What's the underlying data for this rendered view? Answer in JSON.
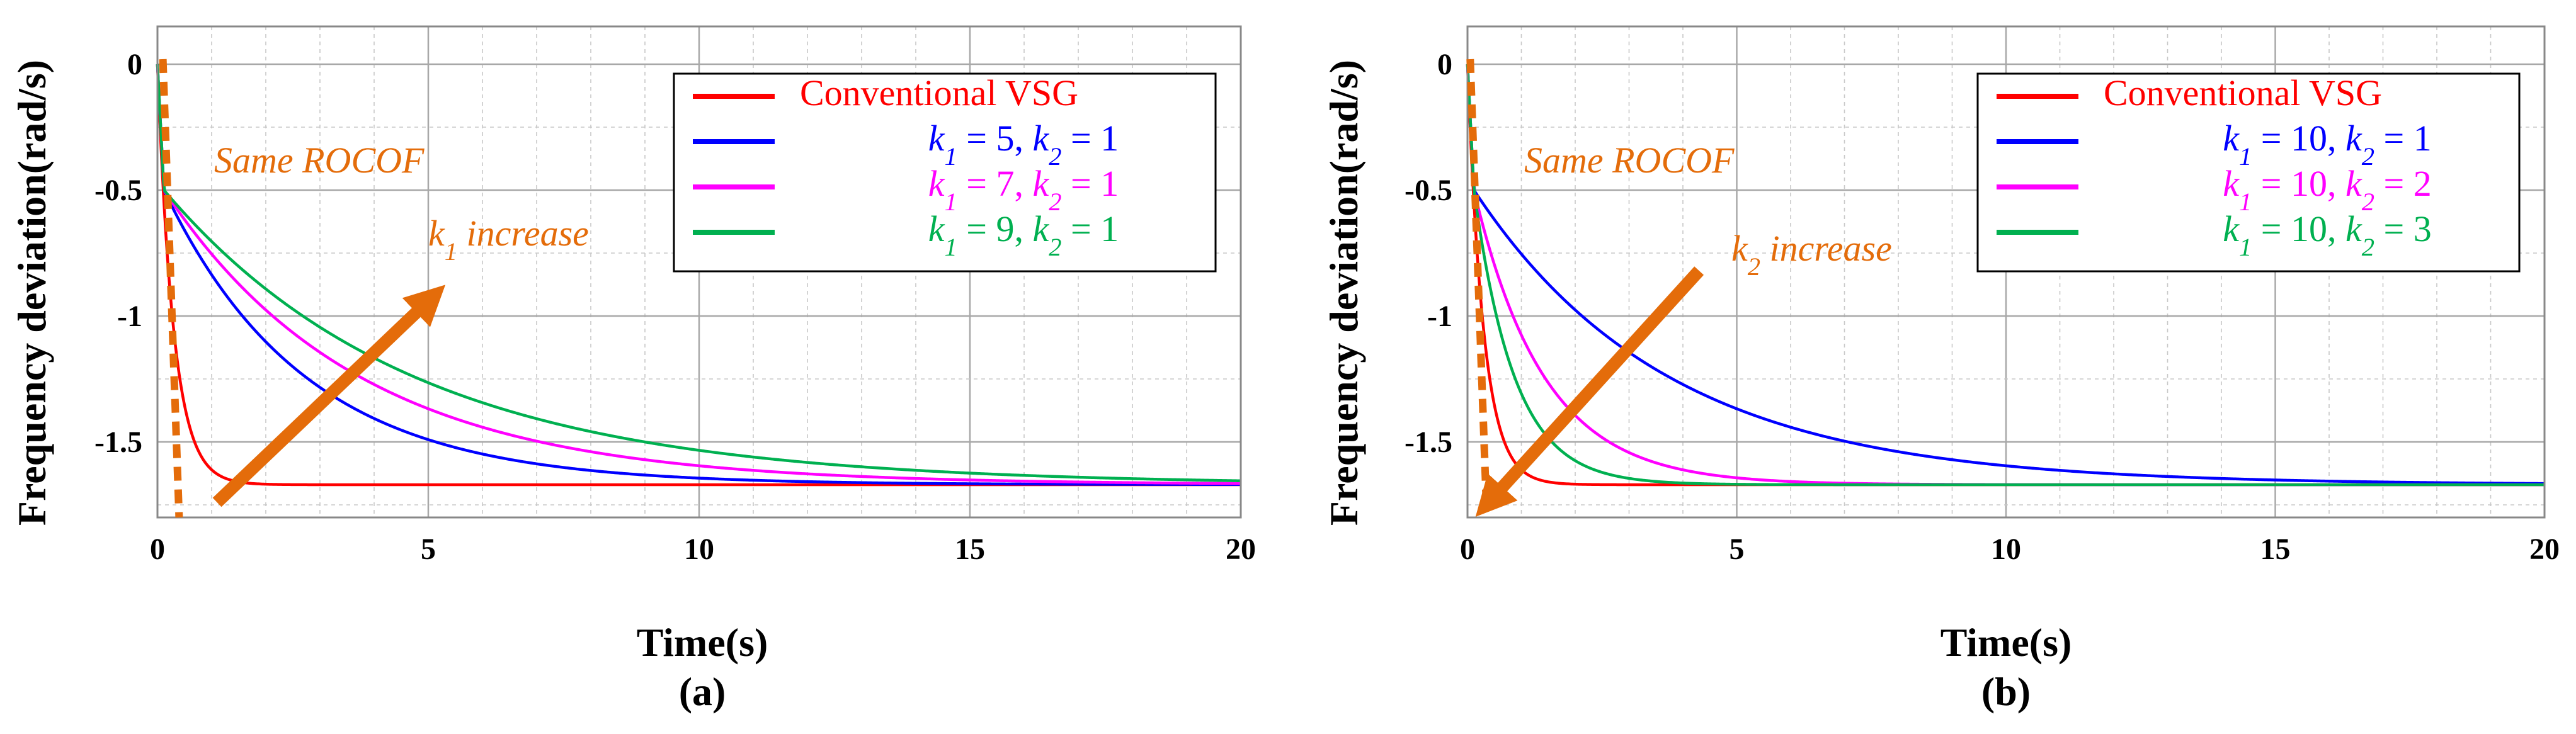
{
  "chart_data": [
    {
      "type": "line",
      "panel_label": "(a)",
      "xlabel": "Time(s)",
      "ylabel": "Frequency deviation(rad/s)",
      "xlim": [
        0,
        20
      ],
      "ylim": [
        -1.8,
        0.15
      ],
      "xticks": [
        "0",
        "5",
        "10",
        "15",
        "20"
      ],
      "yticks": [
        "0",
        "-0.5",
        "-1",
        "-1.5"
      ],
      "grid": true,
      "legend_position": "top-right",
      "steady_state": -1.67,
      "series": [
        {
          "name": "Conventional VSG",
          "color": "#ff0000",
          "tau": 0.3,
          "legend_parts": [
            {
              "t": "Conventional VSG"
            }
          ]
        },
        {
          "name": "k1 = 5, k2 = 1",
          "color": "#0000ff",
          "tau": 2.6,
          "jump": -0.5,
          "legend_parts": [
            {
              "t": "k",
              "i": true
            },
            {
              "t": "1",
              "sub": true,
              "i": true
            },
            {
              "t": " = 5, "
            },
            {
              "t": "k",
              "i": true
            },
            {
              "t": "2",
              "sub": true,
              "i": true
            },
            {
              "t": " = 1"
            }
          ]
        },
        {
          "name": "k1 = 7, k2 = 1",
          "color": "#ff00ff",
          "tau": 3.6,
          "jump": -0.5,
          "legend_parts": [
            {
              "t": "k",
              "i": true
            },
            {
              "t": "1",
              "sub": true,
              "i": true
            },
            {
              "t": " = 7, "
            },
            {
              "t": "k",
              "i": true
            },
            {
              "t": "2",
              "sub": true,
              "i": true
            },
            {
              "t": " = 1"
            }
          ]
        },
        {
          "name": "k1 = 9, k2 = 1",
          "color": "#00b050",
          "tau": 4.6,
          "jump": -0.5,
          "legend_parts": [
            {
              "t": "k",
              "i": true
            },
            {
              "t": "1",
              "sub": true,
              "i": true
            },
            {
              "t": " = 9, "
            },
            {
              "t": "k",
              "i": true
            },
            {
              "t": "2",
              "sub": true,
              "i": true
            },
            {
              "t": " = 1"
            }
          ]
        }
      ],
      "annotations": {
        "rocof": "Same ROCOF",
        "trend_parts": [
          {
            "t": "k",
            "i": true
          },
          {
            "t": "1",
            "sub": true,
            "i": true
          },
          {
            "t": " increase"
          }
        ],
        "arrow_from": [
          1.1,
          -1.74
        ],
        "arrow_to": [
          5.1,
          -0.92
        ],
        "rocof_line": [
          [
            0.1,
            0.02
          ],
          [
            0.4,
            -1.8
          ]
        ]
      }
    },
    {
      "type": "line",
      "panel_label": "(b)",
      "xlabel": "Time(s)",
      "ylabel": "Frequency deviation(rad/s)",
      "xlim": [
        0,
        20
      ],
      "ylim": [
        -1.8,
        0.15
      ],
      "xticks": [
        "0",
        "5",
        "10",
        "15",
        "20"
      ],
      "yticks": [
        "0",
        "-0.5",
        "-1",
        "-1.5"
      ],
      "grid": true,
      "legend_position": "top-right",
      "steady_state": -1.67,
      "series": [
        {
          "name": "Conventional VSG",
          "color": "#ff0000",
          "tau": 0.3,
          "legend_parts": [
            {
              "t": "Conventional VSG"
            }
          ]
        },
        {
          "name": "k1 = 10, k2 = 1",
          "color": "#0000ff",
          "tau": 3.6,
          "jump": -0.5,
          "legend_parts": [
            {
              "t": "k",
              "i": true
            },
            {
              "t": "1",
              "sub": true,
              "i": true
            },
            {
              "t": " = 10, "
            },
            {
              "t": "k",
              "i": true
            },
            {
              "t": "2",
              "sub": true,
              "i": true
            },
            {
              "t": " = 1"
            }
          ]
        },
        {
          "name": "k1 = 10, k2 = 2",
          "color": "#ff00ff",
          "tau": 1.3,
          "jump": -0.5,
          "legend_parts": [
            {
              "t": "k",
              "i": true
            },
            {
              "t": "1",
              "sub": true,
              "i": true
            },
            {
              "t": " = 10, "
            },
            {
              "t": "k",
              "i": true
            },
            {
              "t": "2",
              "sub": true,
              "i": true
            },
            {
              "t": " = 2"
            }
          ]
        },
        {
          "name": "k1 = 10, k2 = 3",
          "color": "#00b050",
          "tau": 0.75,
          "jump": -0.5,
          "legend_parts": [
            {
              "t": "k",
              "i": true
            },
            {
              "t": "1",
              "sub": true,
              "i": true
            },
            {
              "t": " = 10, "
            },
            {
              "t": "k",
              "i": true
            },
            {
              "t": "2",
              "sub": true,
              "i": true
            },
            {
              "t": " = 3"
            }
          ]
        }
      ],
      "annotations": {
        "rocof": "Same ROCOF",
        "trend_parts": [
          {
            "t": "k",
            "i": true
          },
          {
            "t": "2",
            "sub": true,
            "i": true
          },
          {
            "t": " increase"
          }
        ],
        "arrow_from": [
          4.3,
          -0.82
        ],
        "arrow_to": [
          0.35,
          -1.75
        ],
        "rocof_line": [
          [
            0.05,
            0.02
          ],
          [
            0.35,
            -1.75
          ]
        ]
      }
    }
  ]
}
